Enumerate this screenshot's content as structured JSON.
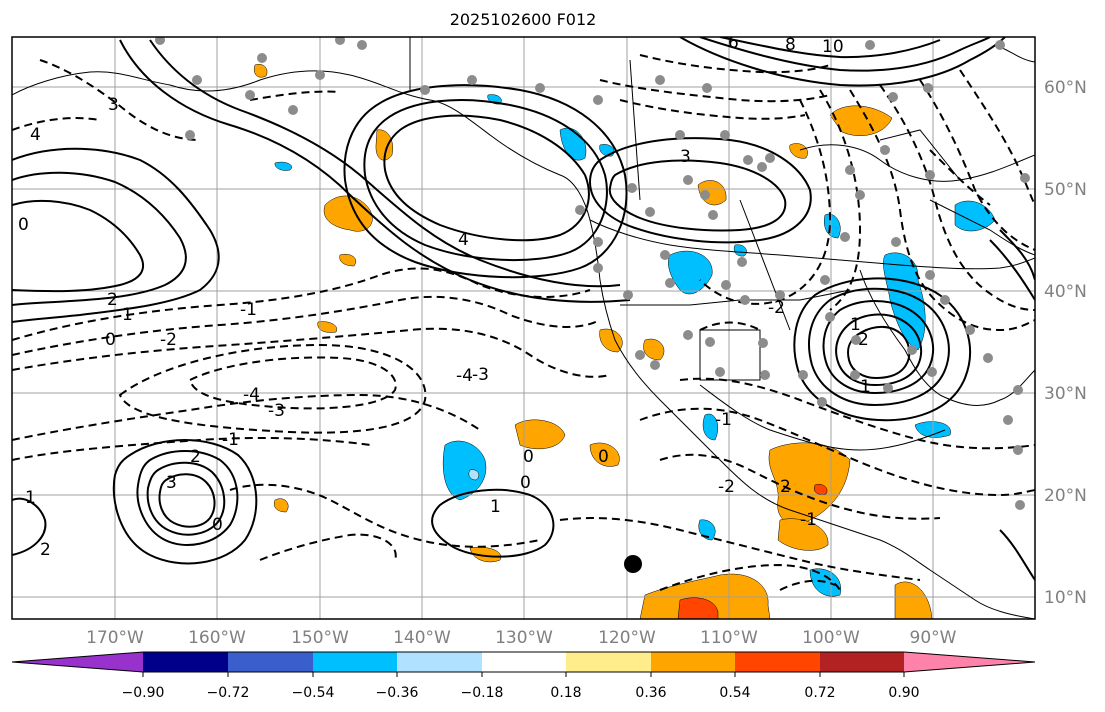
{
  "title": "2025102600 F012",
  "longitude_labels": [
    "170°W",
    "160°W",
    "150°W",
    "140°W",
    "130°W",
    "120°W",
    "110°W",
    "100°W",
    "90°W"
  ],
  "latitude_labels": [
    "60°N",
    "50°N",
    "40°N",
    "30°N",
    "20°N",
    "10°N"
  ],
  "colorbar": {
    "ticks": [
      "−0.90",
      "−0.72",
      "−0.54",
      "−0.36",
      "−0.18",
      "0.18",
      "0.36",
      "0.54",
      "0.72",
      "0.90"
    ],
    "colors": [
      "#9932cc",
      "#00008b",
      "#3a5fcd",
      "#00bfff",
      "#b0e2ff",
      "#ffffff",
      "#ffec8b",
      "#ffa500",
      "#ff4500",
      "#b22222",
      "#ff82ab"
    ]
  },
  "map": {
    "extent": {
      "lon_min": -180,
      "lon_max": -80,
      "lat_min": 8,
      "lat_max": 65
    },
    "contour_labels": [
      "0",
      "1",
      "2",
      "3",
      "4",
      "0",
      "-1",
      "-2",
      "-3",
      "-4",
      "4",
      "3",
      "6",
      "8",
      "10",
      "1",
      "2",
      "1",
      "2",
      "3",
      "2",
      "1",
      "0",
      "-1",
      "-2",
      "-3",
      "-4",
      "-1",
      "0",
      "1",
      "0",
      "0",
      "-2",
      "-1",
      "2"
    ]
  }
}
